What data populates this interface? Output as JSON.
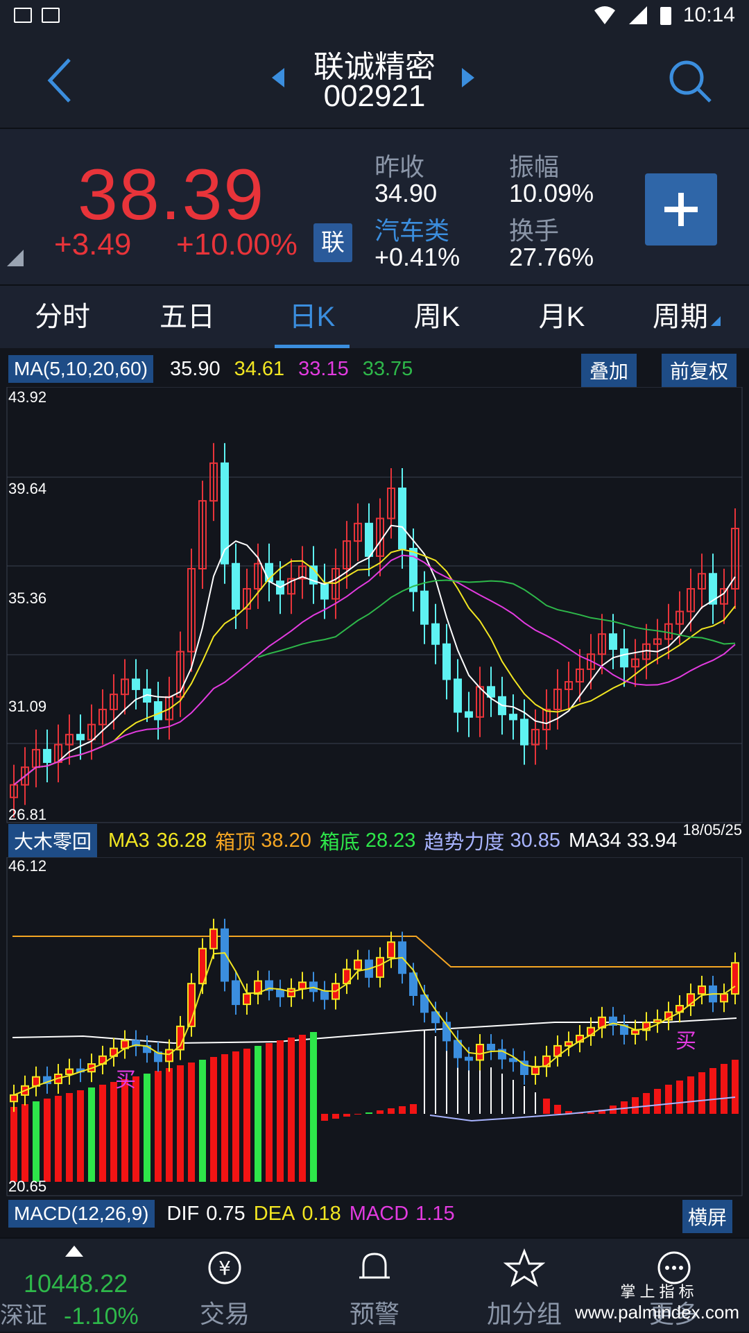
{
  "status": {
    "time": "10:14"
  },
  "header": {
    "name": "联诚精密",
    "code": "002921"
  },
  "quote": {
    "price": "38.39",
    "change": "+3.49",
    "change_pct": "+10.00%",
    "badge": "联",
    "prev_close_label": "昨收",
    "prev_close": "34.90",
    "sector_label": "汽车类",
    "sector_change": "+0.41%",
    "amplitude_label": "振幅",
    "amplitude": "10.09%",
    "turnover_label": "换手",
    "turnover": "27.76%",
    "colors": {
      "up": "#e8343a",
      "accent": "#3b8ede"
    }
  },
  "tabs": [
    "分时",
    "五日",
    "日K",
    "周K",
    "月K",
    "周期"
  ],
  "active_tab": "日K",
  "ma_bar": {
    "label": "MA(5,10,20,60)",
    "ma5": "35.90",
    "ma10": "34.61",
    "ma20": "33.15",
    "ma60": "33.75",
    "overlay_btn": "叠加",
    "adjust_btn": "前复权"
  },
  "kchart": {
    "y_labels": [
      "43.92",
      "39.64",
      "35.36",
      "31.09",
      "26.81"
    ]
  },
  "indicator_bar": {
    "name": "大木零回",
    "ma3_label": "MA3",
    "ma3": "36.28",
    "top_label": "箱顶",
    "top": "38.20",
    "bottom_label": "箱底",
    "bottom": "28.23",
    "trend_label": "趋势力度",
    "trend": "30.85",
    "ma34_label": "MA34",
    "ma34": "33.94",
    "date": "18/05/25"
  },
  "ind_chart": {
    "y_top": "46.12",
    "y_bottom": "20.65",
    "buy_label": "买"
  },
  "macd_bar": {
    "label": "MACD(12,26,9)",
    "dif_label": "DIF",
    "dif": "0.75",
    "dea_label": "DEA",
    "dea": "0.18",
    "macd_label": "MACD",
    "macd": "1.15",
    "landscape_btn": "横屏"
  },
  "bottom_nav": {
    "index_value": "10448.22",
    "index_name": "深证",
    "index_change": "-1.10%",
    "items": [
      "交易",
      "预警",
      "加分组",
      "更多"
    ]
  },
  "watermark": {
    "line1": "掌 上 指 标",
    "line2": "www.palmindex.com"
  }
}
